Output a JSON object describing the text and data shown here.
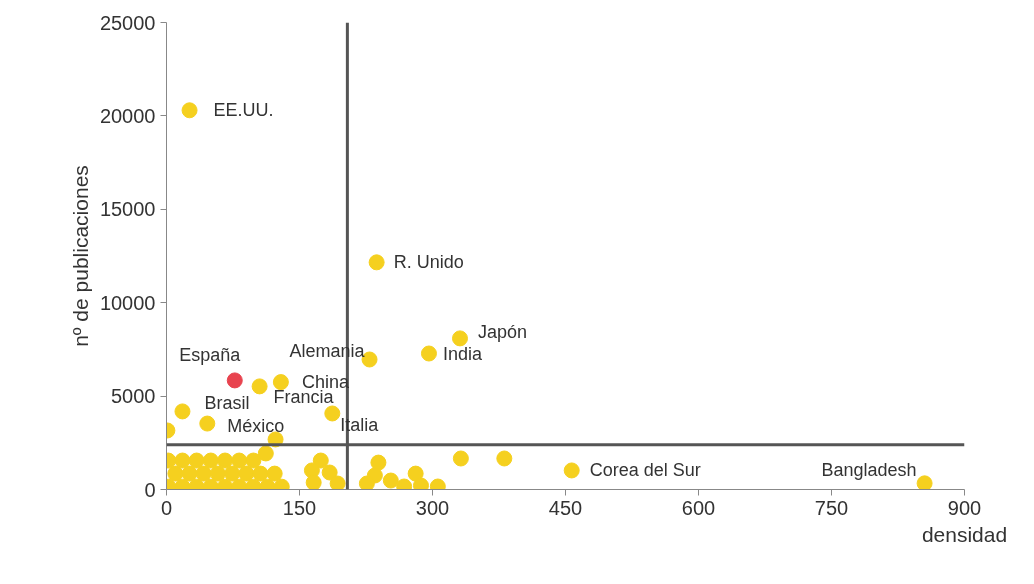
{
  "chart_data": {
    "type": "scatter",
    "xlabel": "densidad",
    "ylabel": "nº de publicaciones",
    "x": [
      26,
      237,
      331,
      296,
      229,
      77,
      129,
      105,
      18,
      46,
      1,
      187,
      123,
      457,
      855,
      332,
      381,
      239,
      235,
      226,
      253,
      268,
      281,
      287,
      306,
      174,
      164,
      166,
      184,
      193,
      2,
      18,
      34,
      50,
      66,
      82,
      98,
      114,
      130,
      10,
      26,
      42,
      58,
      74,
      90,
      106,
      122,
      2,
      18,
      34,
      50,
      66,
      82,
      98,
      112
    ],
    "values": [
      20300,
      12160,
      8090,
      7280,
      6960,
      5840,
      5750,
      5520,
      4180,
      3530,
      3160,
      4070,
      2680,
      1020,
      330,
      1660,
      1660,
      1440,
      750,
      320,
      480,
      160,
      850,
      210,
      160,
      1550,
      1020,
      370,
      910,
      320,
      150,
      150,
      150,
      150,
      150,
      150,
      150,
      150,
      150,
      850,
      850,
      850,
      850,
      850,
      850,
      850,
      850,
      1550,
      1550,
      1550,
      1550,
      1550,
      1550,
      1550,
      1930
    ],
    "colors": [
      "#f5d01f",
      "#f5d01f",
      "#f5d01f",
      "#f5d01f",
      "#f5d01f",
      "#e8434f",
      "#f5d01f",
      "#f5d01f",
      "#f5d01f",
      "#f5d01f",
      "#f5d01f",
      "#f5d01f",
      "#f5d01f",
      "#f5d01f",
      "#f5d01f",
      "#f5d01f",
      "#f5d01f",
      "#f5d01f",
      "#f5d01f",
      "#f5d01f",
      "#f5d01f",
      "#f5d01f",
      "#f5d01f",
      "#f5d01f",
      "#f5d01f",
      "#f5d01f",
      "#f5d01f",
      "#f5d01f",
      "#f5d01f",
      "#f5d01f",
      "#f5d01f",
      "#f5d01f",
      "#f5d01f",
      "#f5d01f",
      "#f5d01f",
      "#f5d01f",
      "#f5d01f",
      "#f5d01f",
      "#f5d01f",
      "#f5d01f",
      "#f5d01f",
      "#f5d01f",
      "#f5d01f",
      "#f5d01f",
      "#f5d01f",
      "#f5d01f",
      "#f5d01f",
      "#f5d01f",
      "#f5d01f",
      "#f5d01f",
      "#f5d01f",
      "#f5d01f",
      "#f5d01f",
      "#f5d01f",
      "#f5d01f"
    ],
    "marker": "circle",
    "xlim": [
      0,
      900
    ],
    "xticks": [
      0,
      150,
      300,
      450,
      600,
      750,
      900
    ],
    "ylim": [
      0,
      25000
    ],
    "yticks": [
      0,
      5000,
      10000,
      15000,
      20000,
      25000
    ],
    "grid": false,
    "ref_lines": [
      {
        "axis": "x",
        "value": 204,
        "color": "#555555"
      },
      {
        "axis": "y",
        "value": 2400,
        "color": "#555555"
      }
    ],
    "annotations": [
      {
        "text": "EE.UU.",
        "x": 26,
        "y": 20300
      },
      {
        "text": "R. Unido",
        "x": 237,
        "y": 12160
      },
      {
        "text": "Japón",
        "x": 331,
        "y": 8090
      },
      {
        "text": "India",
        "x": 296,
        "y": 7280
      },
      {
        "text": "Alemania",
        "x": 229,
        "y": 6960
      },
      {
        "text": "España",
        "x": 77,
        "y": 5840
      },
      {
        "text": "China",
        "x": 129,
        "y": 5750
      },
      {
        "text": "Francia",
        "x": 105,
        "y": 5520
      },
      {
        "text": "Brasil",
        "x": 18,
        "y": 4180
      },
      {
        "text": "México",
        "x": 46,
        "y": 3530
      },
      {
        "text": "Italia",
        "x": 187,
        "y": 4070
      },
      {
        "text": "Corea del Sur",
        "x": 457,
        "y": 1020
      },
      {
        "text": "Bangladesh",
        "x": 855,
        "y": 330
      }
    ]
  }
}
